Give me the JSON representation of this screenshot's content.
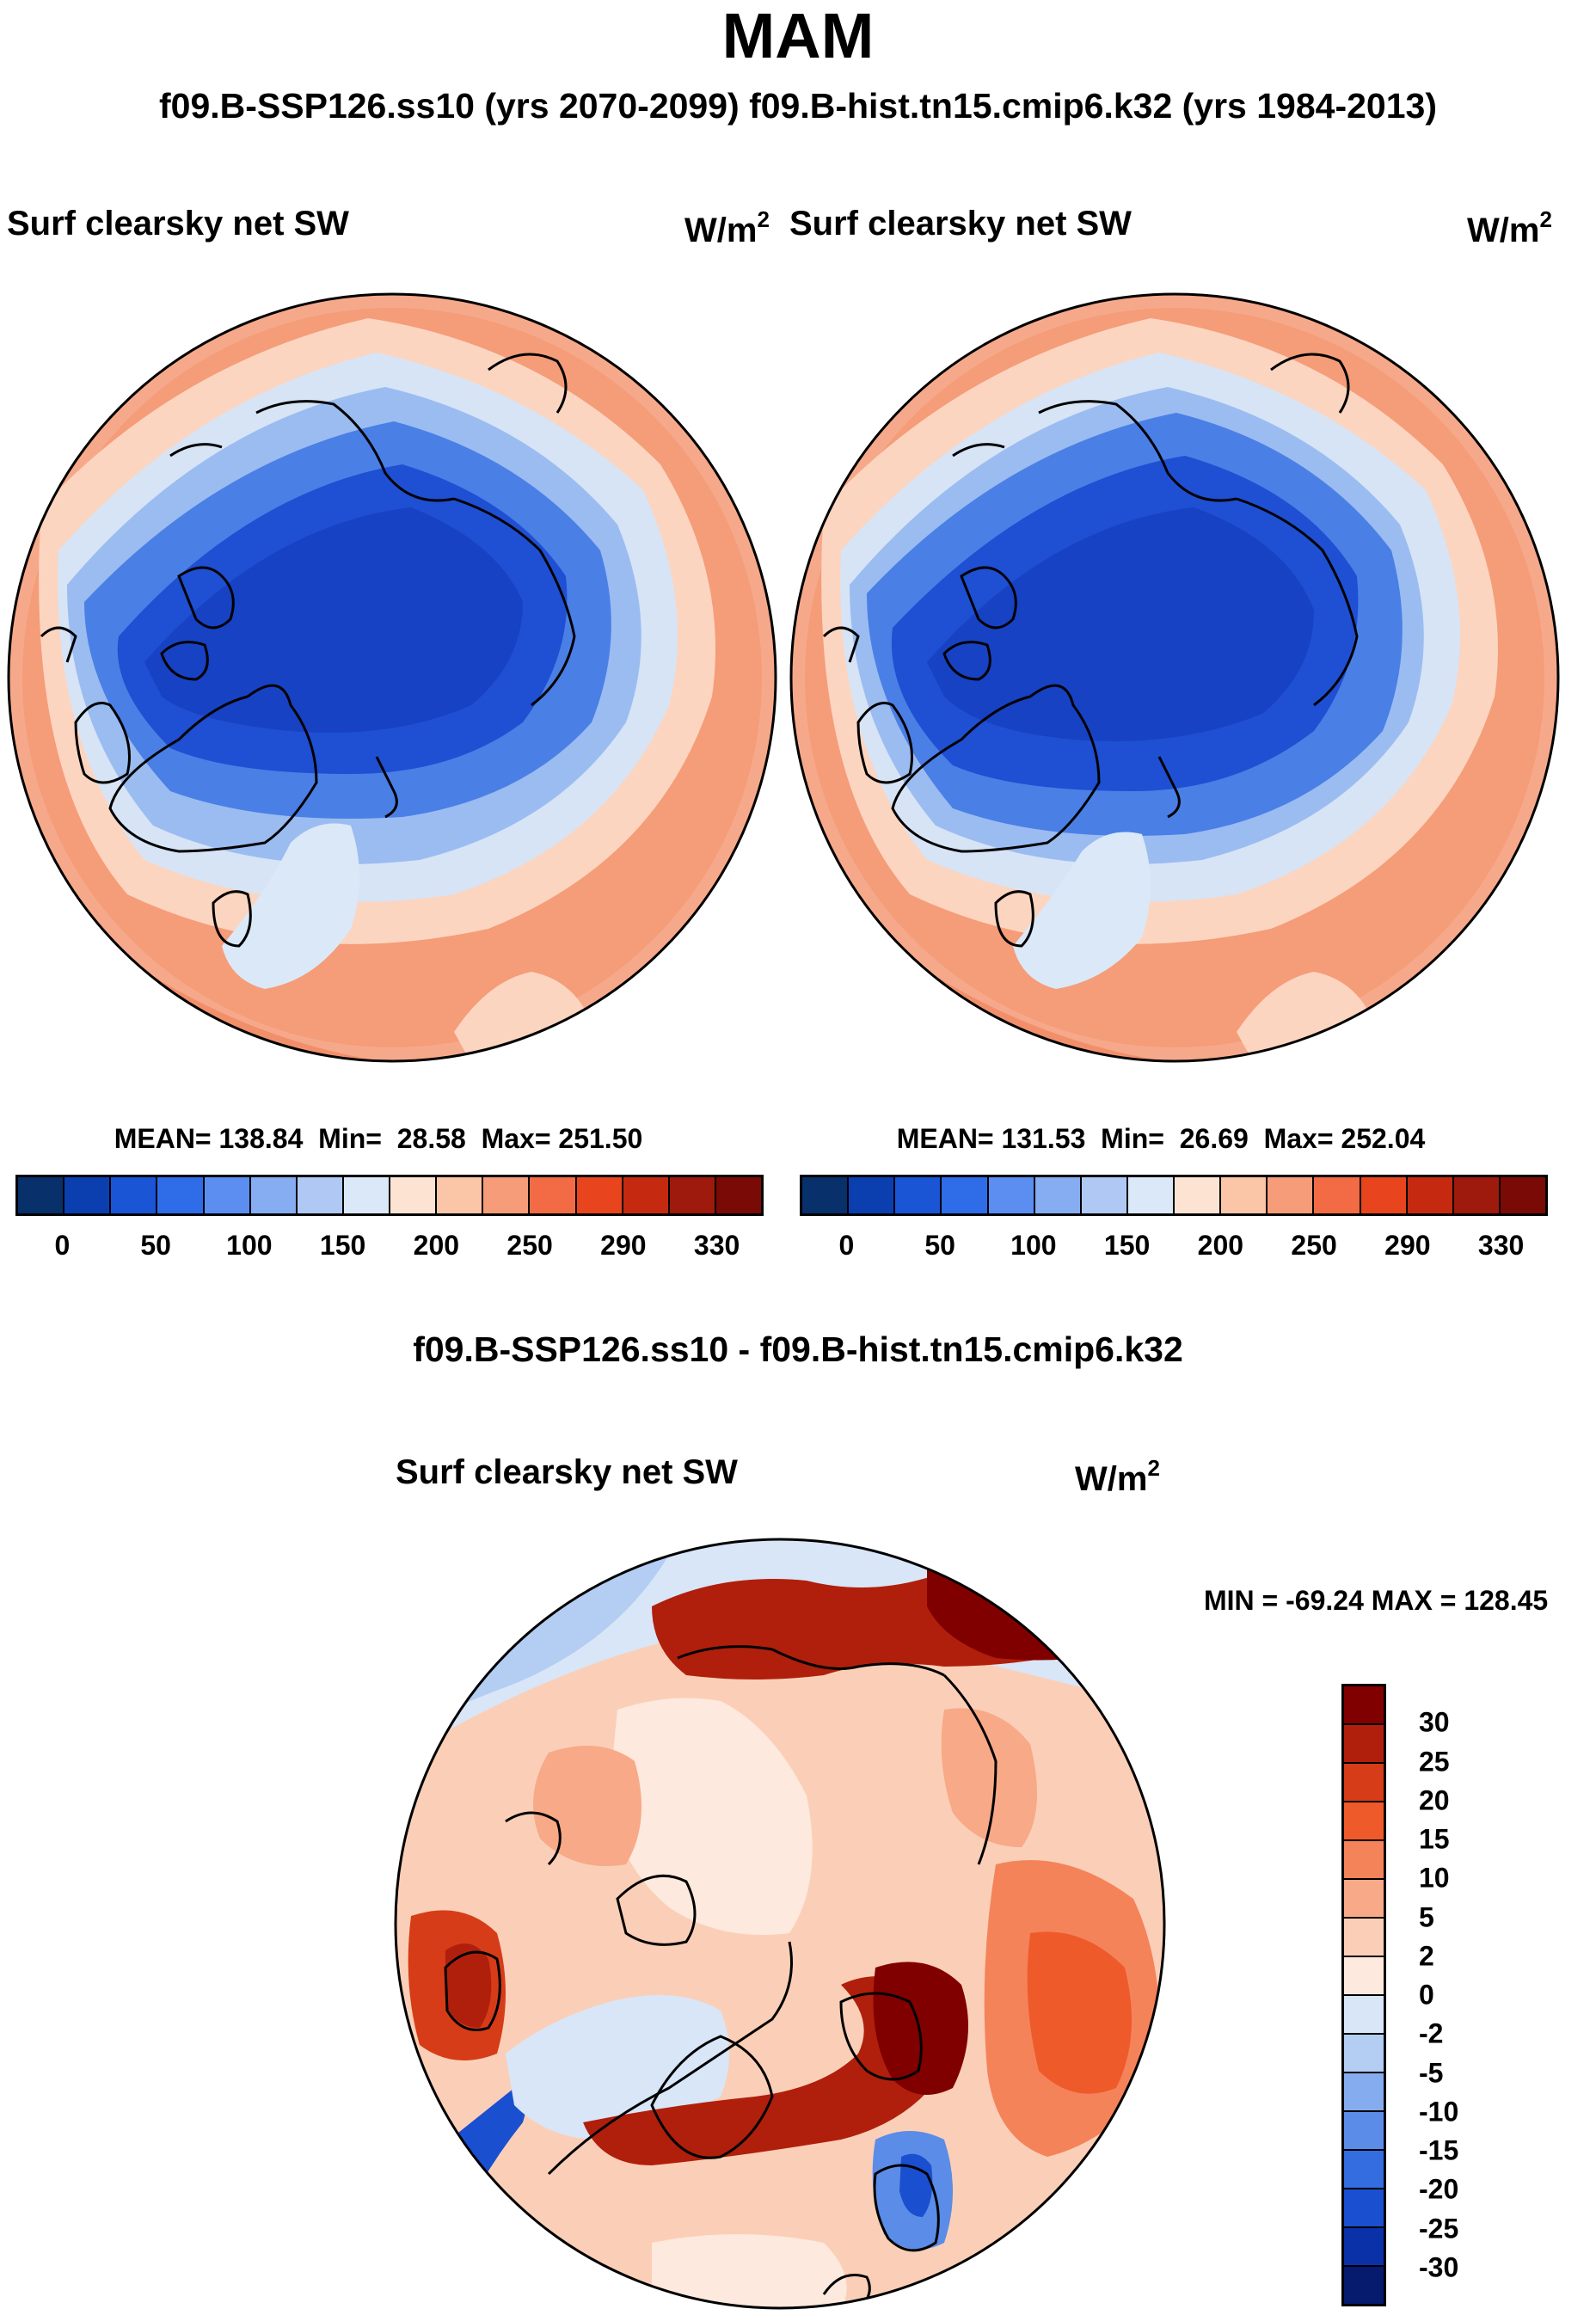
{
  "figure": {
    "season": "MAM",
    "comparison_title": "f09.B-SSP126.ss10 (yrs 2070-2099)  f09.B-hist.tn15.cmip6.k32 (yrs 1984-2013)",
    "difference_title": "f09.B-SSP126.ss10 - f09.B-hist.tn15.cmip6.k32"
  },
  "panels": {
    "left": {
      "variable": "Surf clearsky net SW",
      "units": "W/m",
      "units_exp": "2",
      "mean_label": "MEAN=",
      "mean": "138.84",
      "min_label": "Min=",
      "min": "28.58",
      "max_label": "Max=",
      "max": "251.50"
    },
    "right": {
      "variable": "Surf clearsky net SW",
      "units": "W/m",
      "units_exp": "2",
      "mean_label": "MEAN=",
      "mean": "131.53",
      "min_label": "Min=",
      "min": "26.69",
      "max_label": "Max=",
      "max": "252.04"
    },
    "diff": {
      "variable": "Surf clearsky net SW",
      "units": "W/m",
      "units_exp": "2",
      "range_text": "MIN = -69.24 MAX = 128.45"
    }
  },
  "legends": {
    "abs": {
      "ticks": [
        "0",
        "50",
        "100",
        "150",
        "200",
        "250",
        "290",
        "330"
      ],
      "colors": [
        "#08306b",
        "#0b3fb0",
        "#1a55d6",
        "#2f6de8",
        "#5b8ef0",
        "#86acf2",
        "#b0c9f4",
        "#dbe8f7",
        "#fde4d2",
        "#fbc5a8",
        "#f69c78",
        "#f26b45",
        "#e8451f",
        "#c52a10",
        "#9e1a0c",
        "#7a0a06"
      ]
    },
    "diff": {
      "ticks": [
        "30",
        "25",
        "20",
        "15",
        "10",
        "5",
        "2",
        "0",
        "-2",
        "-5",
        "-10",
        "-15",
        "-20",
        "-25",
        "-30"
      ],
      "colors": [
        "#800000",
        "#b01f0c",
        "#d63c17",
        "#ef5a2b",
        "#f4835a",
        "#f8a987",
        "#fbcfb7",
        "#fde9dd",
        "#d8e6f7",
        "#b3cdf3",
        "#86acf0",
        "#5b8ce8",
        "#336de0",
        "#1a4fd0",
        "#0a31a8",
        "#061a6e"
      ]
    }
  }
}
